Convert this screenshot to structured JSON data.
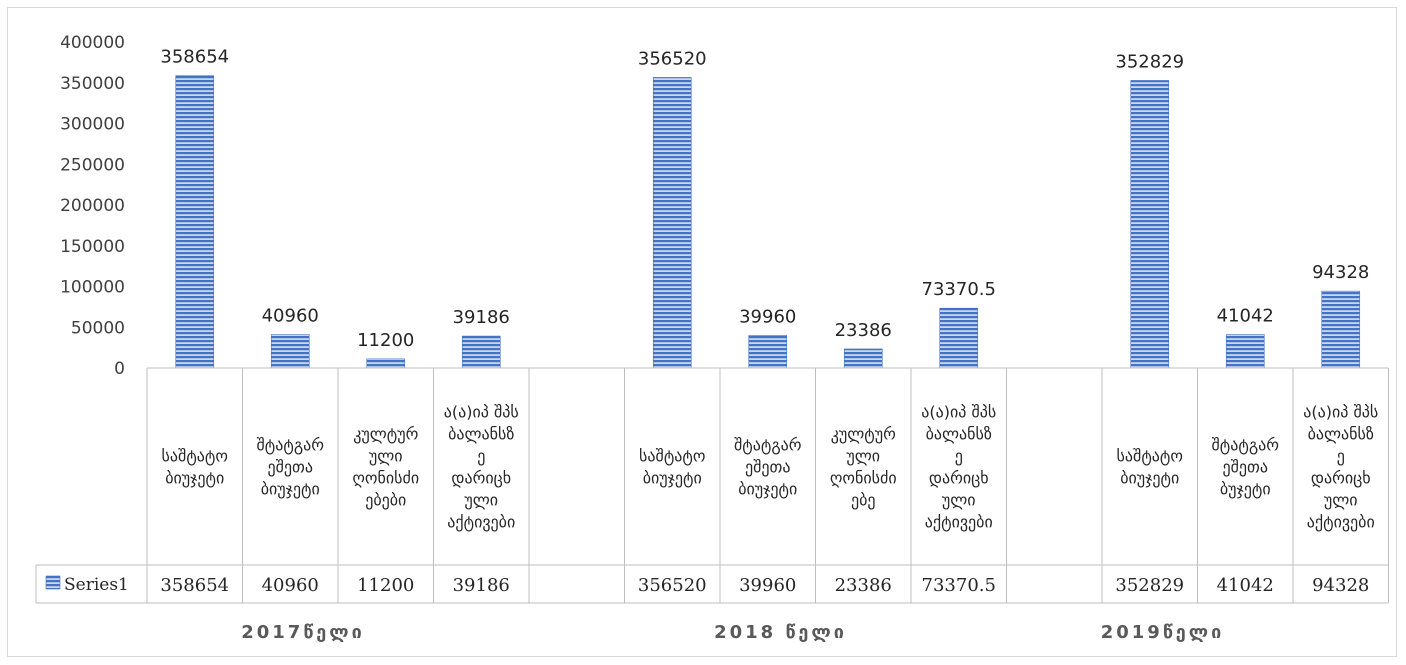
{
  "chart_data": {
    "type": "bar",
    "ylim": [
      0,
      400000
    ],
    "yticks": [
      "0",
      "50000",
      "100000",
      "150000",
      "200000",
      "250000",
      "300000",
      "350000",
      "400000"
    ],
    "grid": false,
    "legend_placement": "table",
    "bar_color": "#4472c4",
    "categories": [
      {
        "group": "2017",
        "label": [
          "საშტატო",
          "ბიუჯეტი"
        ],
        "value": 358654,
        "label_text": "358654"
      },
      {
        "group": "2017",
        "label": [
          "შტატგარ",
          "ეშეთა",
          "ბიუჯეტი"
        ],
        "value": 40960,
        "label_text": "40960"
      },
      {
        "group": "2017",
        "label": [
          "კულტურ",
          "ული",
          "ღონისძი",
          "ებები"
        ],
        "value": 11200,
        "label_text": "11200"
      },
      {
        "group": "2017",
        "label": [
          "ა(ა)იპ შპს",
          "ბალანსზ",
          "ე",
          "დარიცხ",
          "ული",
          "აქტივები"
        ],
        "value": 39186,
        "label_text": "39186"
      },
      {
        "group": "2017",
        "label": [],
        "value": null,
        "label_text": ""
      },
      {
        "group": "2018",
        "label": [
          "საშტატო",
          "ბიუჯეტი"
        ],
        "value": 356520,
        "label_text": "356520"
      },
      {
        "group": "2018",
        "label": [
          "შტატგარ",
          "ეშეთა",
          "ბიუჯეტი"
        ],
        "value": 39960,
        "label_text": "39960"
      },
      {
        "group": "2018",
        "label": [
          "კულტურ",
          "ული",
          "ღონისძი",
          "ებე"
        ],
        "value": 23386,
        "label_text": "23386"
      },
      {
        "group": "2018",
        "label": [
          "ა(ა)იპ შპს",
          "ბალანსზ",
          "ე",
          "დარიცხ",
          "ული",
          "აქტივები"
        ],
        "value": 73370.5,
        "label_text": "73370.5"
      },
      {
        "group": "2018",
        "label": [],
        "value": null,
        "label_text": ""
      },
      {
        "group": "2019",
        "label": [
          "საშტატო",
          "ბიუჯეტი"
        ],
        "value": 352829,
        "label_text": "352829"
      },
      {
        "group": "2019",
        "label": [
          "შტატგარ",
          "ეშეთა",
          "ბუჯეტი"
        ],
        "value": 41042,
        "label_text": "41042"
      },
      {
        "group": "2019",
        "label": [
          "ა(ა)იპ შპს",
          "ბალანსზ",
          "ე",
          "დარიცხ",
          "ული",
          "აქტივები"
        ],
        "value": 94328,
        "label_text": "94328"
      }
    ],
    "series": [
      {
        "name": "Series1"
      }
    ],
    "groups": [
      "2017წელი",
      "2018 წელი",
      "2019წელი"
    ]
  }
}
